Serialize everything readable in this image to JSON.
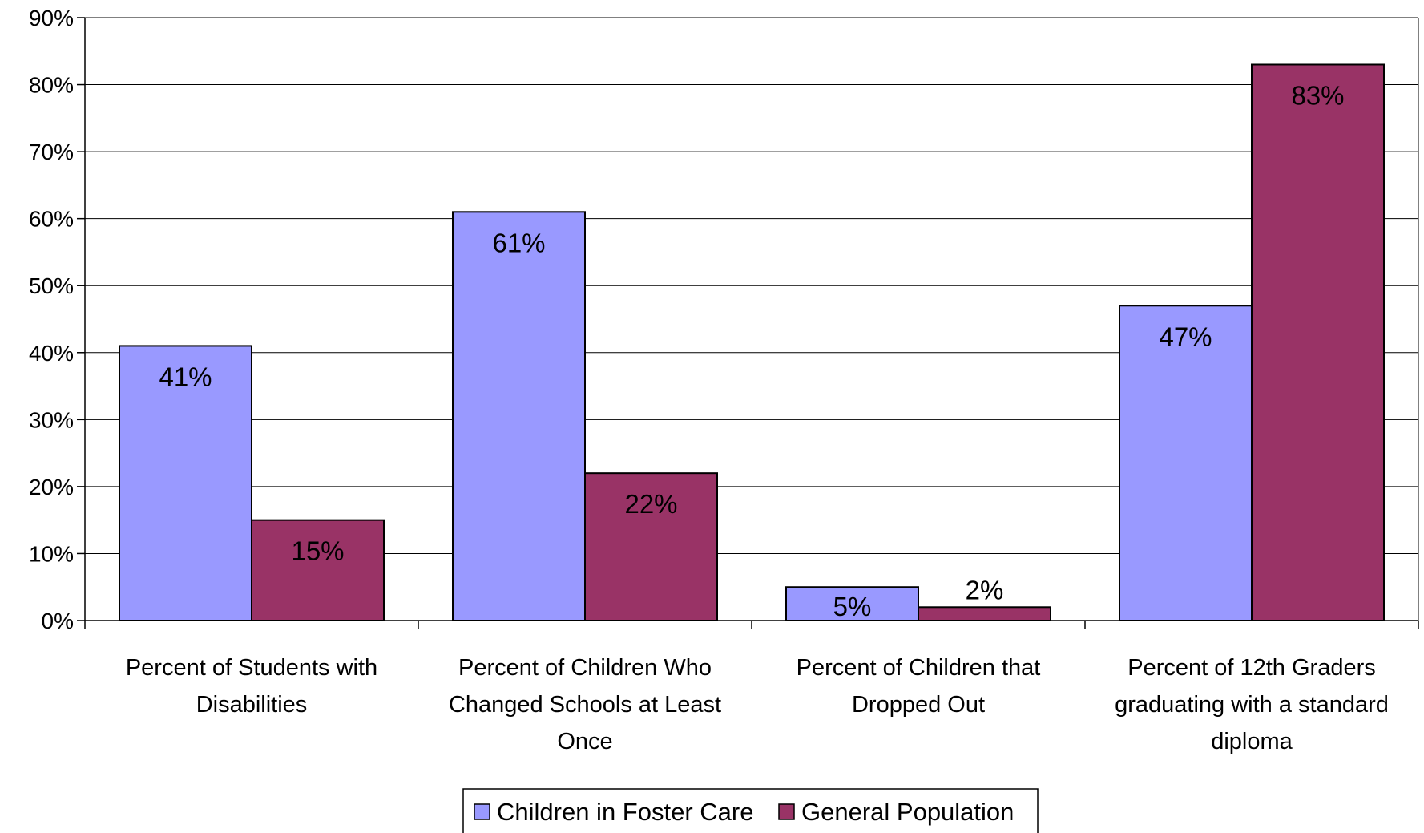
{
  "chart_data": {
    "type": "bar",
    "title": "",
    "xlabel": "",
    "ylabel": "",
    "ylim": [
      0,
      90
    ],
    "yticks": [
      0,
      10,
      20,
      30,
      40,
      50,
      60,
      70,
      80,
      90
    ],
    "ytick_labels": [
      "0%",
      "10%",
      "20%",
      "30%",
      "40%",
      "50%",
      "60%",
      "70%",
      "80%",
      "90%"
    ],
    "grid": true,
    "legend_position": "bottom",
    "categories": [
      [
        "Percent of Students with",
        "Disabilities"
      ],
      [
        "Percent of Children Who",
        "Changed Schools at Least",
        "Once"
      ],
      [
        "Percent of Children that",
        "Dropped Out"
      ],
      [
        "Percent of 12th Graders",
        "graduating with a standard",
        "diploma"
      ]
    ],
    "series": [
      {
        "name": "Children in Foster Care",
        "color": "#9999ff",
        "values": [
          41,
          61,
          5,
          47
        ],
        "labels": [
          "41%",
          "61%",
          "5%",
          "47%"
        ]
      },
      {
        "name": "General Population",
        "color": "#993366",
        "values": [
          15,
          22,
          2,
          83
        ],
        "labels": [
          "15%",
          "22%",
          "2%",
          "83%"
        ]
      }
    ]
  }
}
